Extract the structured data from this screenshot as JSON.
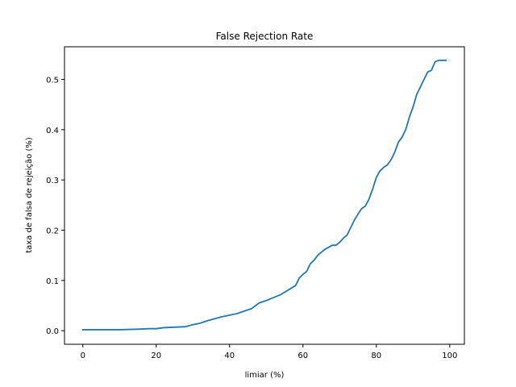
{
  "chart_data": {
    "type": "line",
    "title": "False Rejection Rate",
    "xlabel": "limiar (%)",
    "ylabel": "taxa de falsa de rejeição (%)",
    "xlim": [
      -5,
      104
    ],
    "ylim": [
      -0.027,
      0.565
    ],
    "xticks": [
      0,
      20,
      40,
      60,
      80,
      100
    ],
    "yticks": [
      0.0,
      0.1,
      0.2,
      0.3,
      0.4,
      0.5
    ],
    "xtick_labels": [
      "0",
      "20",
      "40",
      "60",
      "80",
      "100"
    ],
    "ytick_labels": [
      "0.0",
      "0.1",
      "0.2",
      "0.3",
      "0.4",
      "0.5"
    ],
    "grid": false,
    "series": [
      {
        "color": "#1f77b4",
        "x": [
          0,
          5,
          10,
          15,
          18,
          20,
          22,
          25,
          28,
          30,
          32,
          34,
          36,
          38,
          40,
          42,
          44,
          46,
          48,
          50,
          52,
          54,
          56,
          58,
          59,
          60,
          61,
          62,
          63,
          64,
          65,
          66,
          67,
          68,
          69,
          70,
          71,
          72,
          73,
          74,
          75,
          76,
          77,
          78,
          79,
          80,
          81,
          82,
          83,
          84,
          85,
          86,
          87,
          88,
          89,
          90,
          91,
          92,
          93,
          94,
          95,
          96,
          97,
          98,
          99
        ],
        "y": [
          0.002,
          0.002,
          0.002,
          0.003,
          0.004,
          0.004,
          0.006,
          0.007,
          0.008,
          0.012,
          0.015,
          0.02,
          0.024,
          0.028,
          0.031,
          0.034,
          0.039,
          0.044,
          0.055,
          0.06,
          0.066,
          0.072,
          0.081,
          0.09,
          0.105,
          0.112,
          0.118,
          0.133,
          0.14,
          0.15,
          0.156,
          0.162,
          0.166,
          0.17,
          0.17,
          0.176,
          0.184,
          0.19,
          0.205,
          0.22,
          0.232,
          0.243,
          0.248,
          0.262,
          0.282,
          0.305,
          0.318,
          0.325,
          0.33,
          0.34,
          0.355,
          0.375,
          0.385,
          0.4,
          0.425,
          0.445,
          0.47,
          0.485,
          0.5,
          0.515,
          0.518,
          0.535,
          0.538,
          0.538,
          0.538
        ]
      }
    ]
  }
}
